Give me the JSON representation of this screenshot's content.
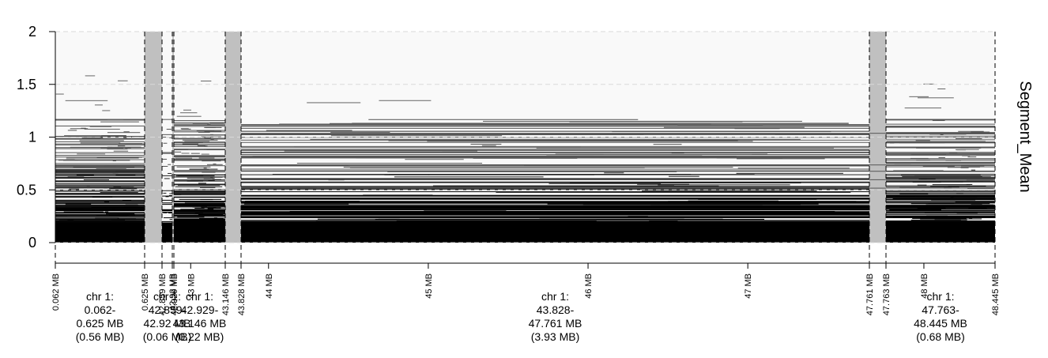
{
  "chart_data": {
    "type": "heatmap",
    "ylabel": "Segment_Mean",
    "ylim": [
      0,
      2
    ],
    "y_ticks": [
      "0",
      "0.5",
      "1",
      "1.5",
      "2"
    ],
    "x_unit": "MB",
    "xlim": [
      0.062,
      48.445
    ],
    "grid": true,
    "panels": [
      {
        "start": 0.062,
        "end": 0.625,
        "fill": "data"
      },
      {
        "start": 0.625,
        "end": 42.859,
        "fill": "gray"
      },
      {
        "start": 42.859,
        "end": 42.92,
        "fill": "data"
      },
      {
        "start": 42.92,
        "end": 42.929,
        "fill": "gray"
      },
      {
        "start": 42.929,
        "end": 43.146,
        "fill": "data"
      },
      {
        "start": 43.146,
        "end": 43.828,
        "fill": "gray"
      },
      {
        "start": 43.828,
        "end": 47.761,
        "fill": "data"
      },
      {
        "start": 47.761,
        "end": 47.763,
        "fill": "gray"
      },
      {
        "start": 47.763,
        "end": 48.445,
        "fill": "data"
      }
    ],
    "boundary_labels": [
      {
        "label": "0.062 MB",
        "value": 0.062
      },
      {
        "label": "0.625 MB",
        "value": 0.625
      },
      {
        "label": "42.859 MB",
        "value": 42.859
      },
      {
        "label": "42.92 MB",
        "value": 42.92
      },
      {
        "label": "42.929 MB",
        "value": 42.929
      },
      {
        "label": "43 MB",
        "value": 43.0
      },
      {
        "label": "43.146 MB",
        "value": 43.146
      },
      {
        "label": "43.828 MB",
        "value": 43.828
      },
      {
        "label": "44 MB",
        "value": 44
      },
      {
        "label": "45 MB",
        "value": 45
      },
      {
        "label": "46 MB",
        "value": 46
      },
      {
        "label": "47 MB",
        "value": 47
      },
      {
        "label": "47.761 MB",
        "value": 47.761
      },
      {
        "label": "47.763 MB",
        "value": 47.763
      },
      {
        "label": "48 MB",
        "value": 48
      },
      {
        "label": "48.445 MB",
        "value": 48.445
      }
    ],
    "regions": [
      {
        "lines": [
          "chr 1:",
          "0.062-",
          "0.625 MB",
          "(0.56 MB)"
        ],
        "start": 0.062,
        "end": 0.625
      },
      {
        "lines": [
          "chr 1:",
          "42.859-",
          "42.92 MB",
          "(0.06 MB)"
        ],
        "start": 42.859,
        "end": 42.92
      },
      {
        "lines": [
          "chr 1:",
          "42.929-",
          "43.146 MB",
          "(0.22 MB)"
        ],
        "start": 42.929,
        "end": 43.146
      },
      {
        "lines": [
          "chr 1:",
          "43.828-",
          "47.761 MB",
          "(3.93 MB)"
        ],
        "start": 43.828,
        "end": 47.761
      },
      {
        "lines": [
          "chr 1:",
          "47.763-",
          "48.445 MB",
          "(0.68 MB)"
        ],
        "start": 47.763,
        "end": 48.445
      }
    ],
    "colors": {
      "background": "#ffffff",
      "plot_background": "#f9f9f9",
      "segment_dark": "#000000",
      "gap_gray": "#c0c0c0",
      "grid": "#d9d9d9"
    }
  }
}
